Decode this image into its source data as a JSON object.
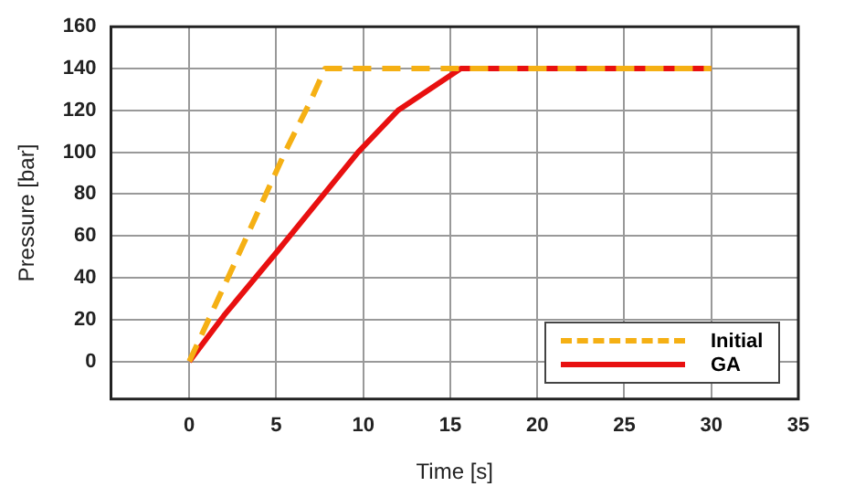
{
  "chart_data": {
    "type": "line",
    "xlabel": "Time [s]",
    "ylabel": "Pressure [bar]",
    "xlim": [
      -4.5,
      35
    ],
    "xticks": [
      0,
      5,
      10,
      15,
      20,
      25,
      30,
      35
    ],
    "ylim": [
      -18,
      160
    ],
    "yticks": [
      0,
      20,
      40,
      60,
      80,
      100,
      120,
      140,
      160
    ],
    "grid": true,
    "legend": "bottom right",
    "marker": "none",
    "series": [
      {
        "name": "Initial",
        "color": "#f5b014",
        "line_style": "dashed",
        "x": [
          0,
          2.5,
          5.5,
          7,
          7.8,
          30
        ],
        "values": [
          0,
          45,
          100,
          125,
          140,
          140
        ]
      },
      {
        "name": "GA",
        "color": "#e81010",
        "line_style": "solid",
        "x": [
          0,
          2,
          5,
          9.7,
          12,
          15.6,
          30
        ],
        "values": [
          0,
          22,
          52,
          100,
          120,
          140,
          140
        ]
      }
    ]
  }
}
